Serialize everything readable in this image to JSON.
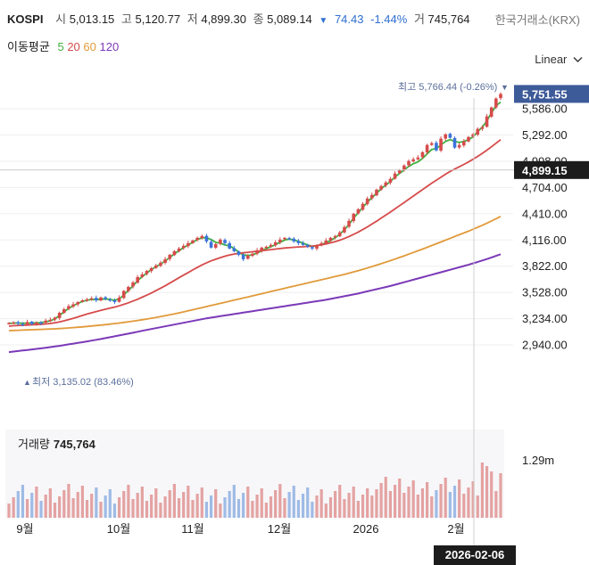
{
  "header": {
    "symbol": "KOSPI",
    "open_label": "시",
    "open": "5,013.15",
    "high_label": "고",
    "high": "5,120.77",
    "low_label": "저",
    "low": "4,899.30",
    "close_label": "종",
    "close": "5,089.14",
    "change_arrow": "▼",
    "change": "74.43",
    "change_pct": "-1.44%",
    "volume_label": "거",
    "volume": "745,764",
    "exchange": "한국거래소(KRX)"
  },
  "ma_legend": {
    "title": "이동평균",
    "items": [
      {
        "label": "5",
        "color": "#3fb13f"
      },
      {
        "label": "20",
        "color": "#d64b4b"
      },
      {
        "label": "60",
        "color": "#e19a3a"
      },
      {
        "label": "120",
        "color": "#7b39b8"
      }
    ]
  },
  "scale_button": "Linear",
  "scale_chevron": "chevron-down-icon",
  "price_axis": {
    "ticks": [
      "5,586.00",
      "5,292.00",
      "4,998.00",
      "4,704.00",
      "4,410.00",
      "4,116.00",
      "3,822.00",
      "3,528.00",
      "3,234.00",
      "2,940.00"
    ],
    "tick_values": [
      5586,
      5292,
      4998,
      4704,
      4410,
      4116,
      3822,
      3528,
      3234,
      2940
    ],
    "current_price_tag": "5,751.55",
    "crosshair_price_tag": "4,899.15"
  },
  "annotations": {
    "high_label": "최고",
    "high_value": "5,766.44 (-0.26%)",
    "low_label": "최저",
    "low_value": "3,135.02 (83.46%)"
  },
  "volume_panel": {
    "title": "거래량",
    "value": "745,764",
    "axis_label": "1.29m"
  },
  "x_axis": {
    "labels": [
      "9월",
      "10월",
      "11월",
      "12월",
      "2026",
      "2월"
    ],
    "crosshair_date": "2026-02-06"
  },
  "colors": {
    "up": "#d64b4b",
    "down": "#3b73d9",
    "ma5": "#3fb13f",
    "ma20": "#d64b4b",
    "ma60": "#e19a3a",
    "ma120": "#7b39b8",
    "tag_blue": "#3d5a99"
  },
  "chart_data": {
    "type": "candlestick",
    "title": "KOSPI",
    "xlabel": "",
    "ylabel": "",
    "ylim": [
      2800,
      5800
    ],
    "x_labels": [
      "9월",
      "10월",
      "11월",
      "12월",
      "2026",
      "2월"
    ],
    "close_series": [
      3186,
      3192,
      3178,
      3170,
      3196,
      3175,
      3190,
      3185,
      3212,
      3222,
      3246,
      3300,
      3340,
      3375,
      3395,
      3420,
      3440,
      3450,
      3462,
      3440,
      3472,
      3455,
      3440,
      3420,
      3470,
      3545,
      3590,
      3640,
      3700,
      3730,
      3770,
      3800,
      3830,
      3860,
      3900,
      3950,
      3990,
      4020,
      4050,
      4080,
      4110,
      4140,
      4160,
      4100,
      4030,
      4070,
      4120,
      4080,
      4020,
      3990,
      3950,
      3900,
      3940,
      3960,
      4000,
      4030,
      4040,
      4060,
      4090,
      4120,
      4140,
      4130,
      4100,
      4080,
      4060,
      4040,
      4020,
      4050,
      4080,
      4110,
      4140,
      4160,
      4200,
      4260,
      4330,
      4410,
      4460,
      4520,
      4580,
      4620,
      4680,
      4720,
      4760,
      4800,
      4860,
      4900,
      4950,
      5000,
      5020,
      5040,
      5100,
      5180,
      5200,
      5120,
      5250,
      5300,
      5260,
      5150,
      5180,
      5220,
      5270,
      5300,
      5360,
      5380,
      5500,
      5600,
      5700,
      5751.55
    ],
    "volume_max_label": "1.29m",
    "volume_last": 745764,
    "high": 5766.44,
    "high_pct": -0.26,
    "low": 3135.02,
    "low_pct": 83.46,
    "last_price": 5751.55,
    "crosshair_price": 4899.15,
    "crosshair_date": "2026-02-06",
    "series": [
      {
        "name": "5",
        "values": [
          3180,
          3185,
          3186,
          3182,
          3185,
          3184,
          3188,
          3188,
          3200,
          3210,
          3230,
          3270,
          3310,
          3350,
          3380,
          3405,
          3428,
          3440,
          3452,
          3446,
          3452,
          3455,
          3450,
          3440,
          3455,
          3500,
          3550,
          3600,
          3660,
          3705,
          3745,
          3785,
          3815,
          3845,
          3880,
          3920,
          3960,
          3995,
          4030,
          4060,
          4090,
          4120,
          4140,
          4140,
          4120,
          4090,
          4080,
          4060,
          4050,
          4020,
          3980,
          3950,
          3940,
          3950,
          3970,
          3995,
          4020,
          4040,
          4065,
          4090,
          4115,
          4125,
          4115,
          4100,
          4080,
          4060,
          4045,
          4050,
          4065,
          4085,
          4110,
          4140,
          4180,
          4230,
          4290,
          4360,
          4420,
          4480,
          4540,
          4590,
          4640,
          4690,
          4730,
          4770,
          4820,
          4860,
          4900,
          4940,
          4970,
          4990,
          5030,
          5080,
          5130,
          5140,
          5180,
          5220,
          5240,
          5220,
          5210,
          5220,
          5240,
          5270,
          5330,
          5380,
          5450,
          5540,
          5620,
          5660
        ]
      },
      {
        "name": "20",
        "values": [
          3150,
          3155,
          3158,
          3160,
          3162,
          3165,
          3168,
          3170,
          3175,
          3180,
          3188,
          3198,
          3210,
          3224,
          3238,
          3254,
          3270,
          3286,
          3300,
          3314,
          3328,
          3340,
          3352,
          3364,
          3378,
          3395,
          3412,
          3432,
          3452,
          3475,
          3498,
          3522,
          3548,
          3575,
          3602,
          3632,
          3662,
          3692,
          3722,
          3750,
          3780,
          3808,
          3836,
          3860,
          3882,
          3900,
          3918,
          3934,
          3948,
          3958,
          3966,
          3972,
          3978,
          3984,
          3990,
          3996,
          4002,
          4008,
          4014,
          4020,
          4026,
          4030,
          4034,
          4038,
          4040,
          4044,
          4048,
          4054,
          4062,
          4072,
          4084,
          4098,
          4114,
          4132,
          4154,
          4178,
          4204,
          4232,
          4262,
          4294,
          4326,
          4360,
          4394,
          4428,
          4464,
          4500,
          4536,
          4572,
          4608,
          4644,
          4680,
          4716,
          4752,
          4784,
          4818,
          4852,
          4884,
          4910,
          4936,
          4962,
          4990,
          5020,
          5052,
          5086,
          5122,
          5160,
          5200,
          5240
        ]
      },
      {
        "name": "60",
        "values": [
          3100,
          3102,
          3104,
          3106,
          3108,
          3110,
          3112,
          3114,
          3116,
          3118,
          3120,
          3123,
          3126,
          3130,
          3134,
          3138,
          3142,
          3147,
          3152,
          3157,
          3162,
          3167,
          3173,
          3179,
          3185,
          3192,
          3199,
          3206,
          3214,
          3222,
          3230,
          3239,
          3248,
          3257,
          3267,
          3277,
          3288,
          3299,
          3310,
          3322,
          3334,
          3346,
          3358,
          3370,
          3382,
          3394,
          3406,
          3418,
          3430,
          3442,
          3454,
          3466,
          3478,
          3490,
          3502,
          3514,
          3526,
          3538,
          3550,
          3562,
          3574,
          3586,
          3598,
          3610,
          3622,
          3634,
          3646,
          3658,
          3670,
          3682,
          3694,
          3706,
          3718,
          3730,
          3744,
          3758,
          3772,
          3787,
          3802,
          3818,
          3834,
          3850,
          3867,
          3884,
          3902,
          3920,
          3938,
          3957,
          3976,
          3995,
          4014,
          4034,
          4054,
          4074,
          4094,
          4114,
          4134,
          4154,
          4174,
          4194,
          4214,
          4236,
          4258,
          4280,
          4304,
          4328,
          4354,
          4380
        ]
      },
      {
        "name": "120",
        "values": [
          2860,
          2866,
          2872,
          2878,
          2884,
          2890,
          2896,
          2902,
          2909,
          2916,
          2923,
          2930,
          2938,
          2946,
          2954,
          2962,
          2970,
          2979,
          2988,
          2997,
          3006,
          3016,
          3026,
          3036,
          3046,
          3056,
          3066,
          3076,
          3087,
          3098,
          3108,
          3118,
          3128,
          3138,
          3148,
          3158,
          3168,
          3178,
          3188,
          3198,
          3208,
          3218,
          3228,
          3238,
          3246,
          3254,
          3262,
          3270,
          3278,
          3286,
          3294,
          3302,
          3310,
          3318,
          3326,
          3334,
          3342,
          3350,
          3358,
          3366,
          3374,
          3382,
          3390,
          3398,
          3406,
          3414,
          3422,
          3430,
          3438,
          3446,
          3456,
          3466,
          3476,
          3486,
          3496,
          3506,
          3516,
          3528,
          3540,
          3552,
          3564,
          3576,
          3588,
          3600,
          3614,
          3628,
          3642,
          3656,
          3670,
          3684,
          3698,
          3712,
          3726,
          3740,
          3754,
          3768,
          3782,
          3796,
          3810,
          3824,
          3838,
          3854,
          3870,
          3886,
          3902,
          3920,
          3938,
          3956
        ]
      }
    ]
  }
}
